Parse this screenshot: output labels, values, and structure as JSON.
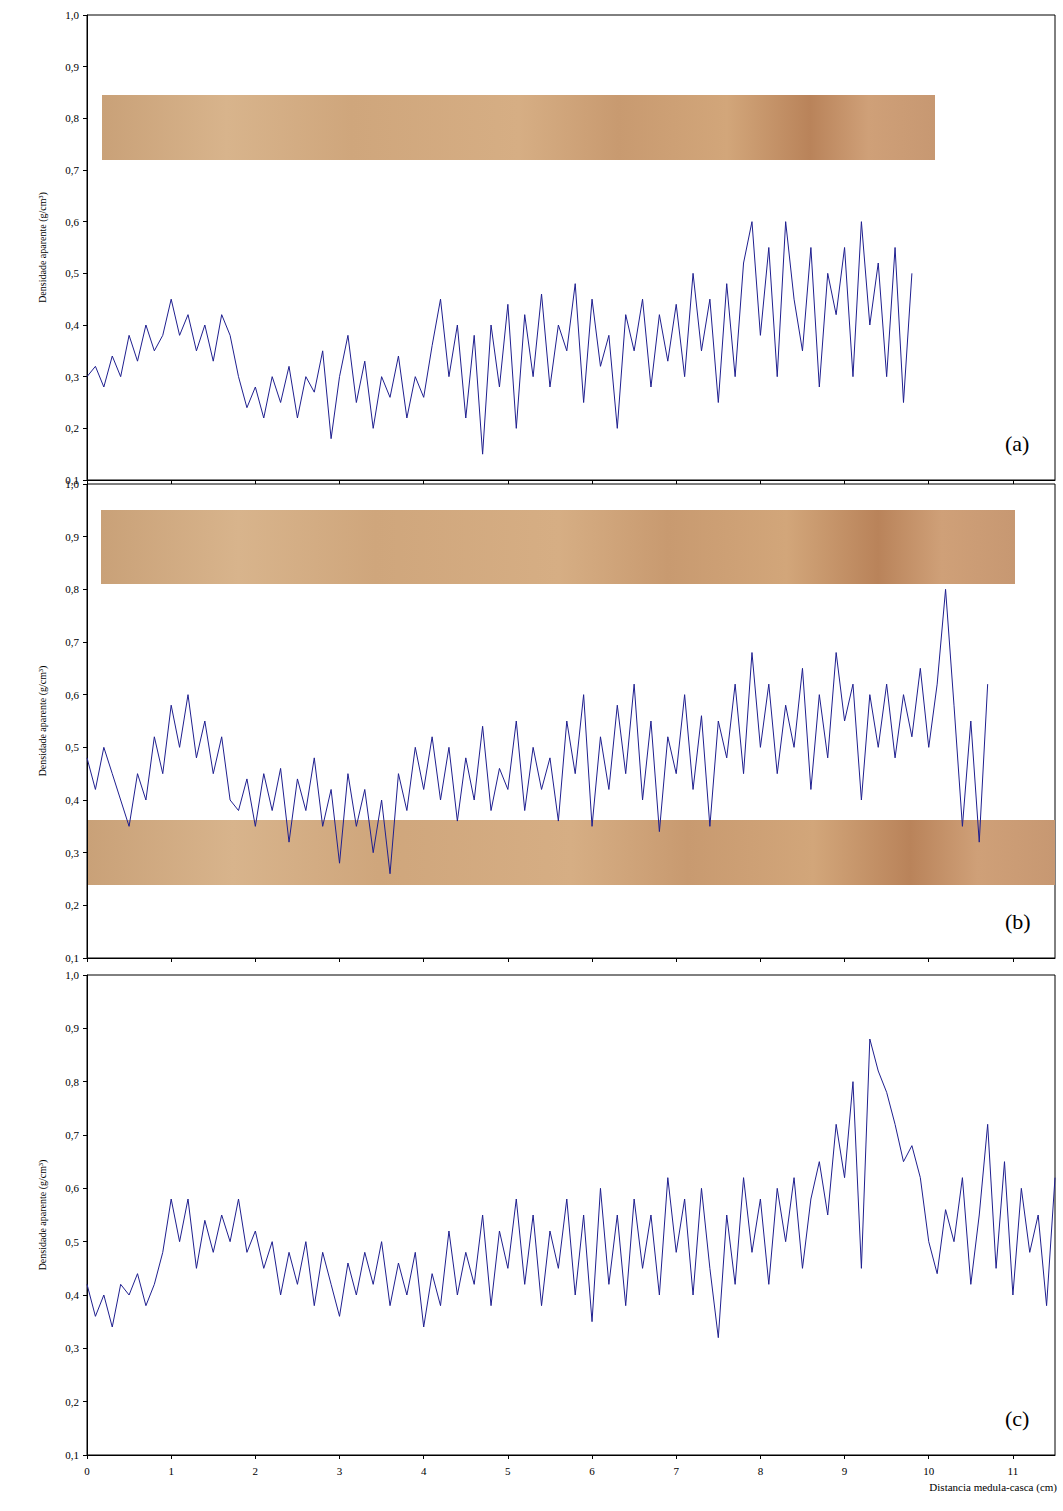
{
  "chart_data": [
    {
      "type": "line",
      "annotation": "(a)",
      "y_label": "Densidade aparente (g/cm³)",
      "color": "#1f1f8f",
      "grid": false,
      "tick_labels": "y",
      "xlim": [
        0,
        11.5
      ],
      "xticks": [
        0,
        1,
        2,
        3,
        4,
        5,
        6,
        7,
        8,
        9,
        10,
        11
      ],
      "ylim": [
        0.1,
        1.0
      ],
      "yticks": [
        {
          "value": 0.1,
          "label": "0,1"
        },
        {
          "value": 0.2,
          "label": "0,2"
        },
        {
          "value": 0.3,
          "label": "0,3"
        },
        {
          "value": 0.4,
          "label": "0,4"
        },
        {
          "value": 0.5,
          "label": "0,5"
        },
        {
          "value": 0.6,
          "label": "0,6"
        },
        {
          "value": 0.7,
          "label": "0,7"
        },
        {
          "value": 0.8,
          "label": "0,8"
        },
        {
          "value": 0.9,
          "label": "0,9"
        },
        {
          "value": 1.0,
          "label": "1,0"
        }
      ],
      "x": [
        0,
        0.1,
        0.2,
        0.3,
        0.4,
        0.5,
        0.6,
        0.7,
        0.8,
        0.9,
        1,
        1.1,
        1.2,
        1.3,
        1.4,
        1.5,
        1.6,
        1.7,
        1.8,
        1.9,
        2,
        2.1,
        2.2,
        2.3,
        2.4,
        2.5,
        2.6,
        2.7,
        2.8,
        2.9,
        3,
        3.1,
        3.2,
        3.3,
        3.4,
        3.5,
        3.6,
        3.7,
        3.8,
        3.9,
        4,
        4.1,
        4.2,
        4.3,
        4.4,
        4.5,
        4.6,
        4.7,
        4.8,
        4.9,
        5,
        5.1,
        5.2,
        5.3,
        5.4,
        5.5,
        5.6,
        5.7,
        5.8,
        5.9,
        6,
        6.1,
        6.2,
        6.3,
        6.4,
        6.5,
        6.6,
        6.7,
        6.8,
        6.9,
        7,
        7.1,
        7.2,
        7.3,
        7.4,
        7.5,
        7.6,
        7.7,
        7.8,
        7.9,
        8,
        8.1,
        8.2,
        8.3,
        8.4,
        8.5,
        8.6,
        8.7,
        8.8,
        8.9,
        9,
        9.1,
        9.2,
        9.3,
        9.4,
        9.5,
        9.6,
        9.7,
        9.8
      ],
      "values": [
        0.3,
        0.32,
        0.28,
        0.34,
        0.3,
        0.38,
        0.33,
        0.4,
        0.35,
        0.38,
        0.45,
        0.38,
        0.42,
        0.35,
        0.4,
        0.33,
        0.42,
        0.38,
        0.3,
        0.24,
        0.28,
        0.22,
        0.3,
        0.25,
        0.32,
        0.22,
        0.3,
        0.27,
        0.35,
        0.18,
        0.3,
        0.38,
        0.25,
        0.33,
        0.2,
        0.3,
        0.26,
        0.34,
        0.22,
        0.3,
        0.26,
        0.36,
        0.45,
        0.3,
        0.4,
        0.22,
        0.38,
        0.15,
        0.4,
        0.28,
        0.44,
        0.2,
        0.42,
        0.3,
        0.46,
        0.28,
        0.4,
        0.35,
        0.48,
        0.25,
        0.45,
        0.32,
        0.38,
        0.2,
        0.42,
        0.35,
        0.45,
        0.28,
        0.42,
        0.33,
        0.44,
        0.3,
        0.5,
        0.35,
        0.45,
        0.25,
        0.48,
        0.3,
        0.52,
        0.6,
        0.38,
        0.55,
        0.3,
        0.6,
        0.45,
        0.35,
        0.55,
        0.28,
        0.5,
        0.42,
        0.55,
        0.3,
        0.6,
        0.4,
        0.52,
        0.3,
        0.55,
        0.25,
        0.5
      ]
    },
    {
      "type": "line",
      "annotation": "(b)",
      "y_label": "Densidade aparente (g/cm³)",
      "color": "#1f1f8f",
      "grid": false,
      "tick_labels": "y",
      "xlim": [
        0,
        11.5
      ],
      "xticks": [
        0,
        1,
        2,
        3,
        4,
        5,
        6,
        7,
        8,
        9,
        10,
        11
      ],
      "ylim": [
        0.1,
        1.0
      ],
      "yticks": [
        {
          "value": 0.1,
          "label": "0,1"
        },
        {
          "value": 0.2,
          "label": "0,2"
        },
        {
          "value": 0.3,
          "label": "0,3"
        },
        {
          "value": 0.4,
          "label": "0,4"
        },
        {
          "value": 0.5,
          "label": "0,5"
        },
        {
          "value": 0.6,
          "label": "0,6"
        },
        {
          "value": 0.7,
          "label": "0,7"
        },
        {
          "value": 0.8,
          "label": "0,8"
        },
        {
          "value": 0.9,
          "label": "0,9"
        },
        {
          "value": 1.0,
          "label": "1,0"
        }
      ],
      "x": [
        0,
        0.1,
        0.2,
        0.3,
        0.4,
        0.5,
        0.6,
        0.7,
        0.8,
        0.9,
        1,
        1.1,
        1.2,
        1.3,
        1.4,
        1.5,
        1.6,
        1.7,
        1.8,
        1.9,
        2,
        2.1,
        2.2,
        2.3,
        2.4,
        2.5,
        2.6,
        2.7,
        2.8,
        2.9,
        3,
        3.1,
        3.2,
        3.3,
        3.4,
        3.5,
        3.6,
        3.7,
        3.8,
        3.9,
        4,
        4.1,
        4.2,
        4.3,
        4.4,
        4.5,
        4.6,
        4.7,
        4.8,
        4.9,
        5,
        5.1,
        5.2,
        5.3,
        5.4,
        5.5,
        5.6,
        5.7,
        5.8,
        5.9,
        6,
        6.1,
        6.2,
        6.3,
        6.4,
        6.5,
        6.6,
        6.7,
        6.8,
        6.9,
        7,
        7.1,
        7.2,
        7.3,
        7.4,
        7.5,
        7.6,
        7.7,
        7.8,
        7.9,
        8,
        8.1,
        8.2,
        8.3,
        8.4,
        8.5,
        8.6,
        8.7,
        8.8,
        8.9,
        9,
        9.1,
        9.2,
        9.3,
        9.4,
        9.5,
        9.6,
        9.7,
        9.8,
        9.9,
        10,
        10.1,
        10.2,
        10.3,
        10.4,
        10.5,
        10.6,
        10.7
      ],
      "values": [
        0.48,
        0.42,
        0.5,
        0.45,
        0.4,
        0.35,
        0.45,
        0.4,
        0.52,
        0.45,
        0.58,
        0.5,
        0.6,
        0.48,
        0.55,
        0.45,
        0.52,
        0.4,
        0.38,
        0.44,
        0.35,
        0.45,
        0.38,
        0.46,
        0.32,
        0.44,
        0.38,
        0.48,
        0.35,
        0.42,
        0.28,
        0.45,
        0.35,
        0.42,
        0.3,
        0.4,
        0.26,
        0.45,
        0.38,
        0.5,
        0.42,
        0.52,
        0.4,
        0.5,
        0.36,
        0.48,
        0.4,
        0.54,
        0.38,
        0.46,
        0.42,
        0.55,
        0.38,
        0.5,
        0.42,
        0.48,
        0.36,
        0.55,
        0.45,
        0.6,
        0.35,
        0.52,
        0.42,
        0.58,
        0.45,
        0.62,
        0.4,
        0.55,
        0.34,
        0.52,
        0.45,
        0.6,
        0.42,
        0.56,
        0.35,
        0.55,
        0.48,
        0.62,
        0.45,
        0.68,
        0.5,
        0.62,
        0.45,
        0.58,
        0.5,
        0.65,
        0.42,
        0.6,
        0.48,
        0.68,
        0.55,
        0.62,
        0.4,
        0.6,
        0.5,
        0.62,
        0.48,
        0.6,
        0.52,
        0.65,
        0.5,
        0.62,
        0.8,
        0.58,
        0.35,
        0.55,
        0.32,
        0.62
      ]
    },
    {
      "type": "line",
      "annotation": "(c)",
      "y_label": "Densidade aparente (g/cm³)",
      "x_label": "Distancia medula-casca (cm)",
      "color": "#1f1f8f",
      "grid": false,
      "xlim": [
        0,
        11.5
      ],
      "xticks": [
        0,
        1,
        2,
        3,
        4,
        5,
        6,
        7,
        8,
        9,
        10,
        11
      ],
      "ylim": [
        0.1,
        1.0
      ],
      "yticks": [
        {
          "value": 0.1,
          "label": "0,1"
        },
        {
          "value": 0.2,
          "label": "0,2"
        },
        {
          "value": 0.3,
          "label": "0,3"
        },
        {
          "value": 0.4,
          "label": "0,4"
        },
        {
          "value": 0.5,
          "label": "0,5"
        },
        {
          "value": 0.6,
          "label": "0,6"
        },
        {
          "value": 0.7,
          "label": "0,7"
        },
        {
          "value": 0.8,
          "label": "0,8"
        },
        {
          "value": 0.9,
          "label": "0,9"
        },
        {
          "value": 1.0,
          "label": "1,0"
        }
      ],
      "x": [
        0,
        0.1,
        0.2,
        0.3,
        0.4,
        0.5,
        0.6,
        0.7,
        0.8,
        0.9,
        1,
        1.1,
        1.2,
        1.3,
        1.4,
        1.5,
        1.6,
        1.7,
        1.8,
        1.9,
        2,
        2.1,
        2.2,
        2.3,
        2.4,
        2.5,
        2.6,
        2.7,
        2.8,
        2.9,
        3,
        3.1,
        3.2,
        3.3,
        3.4,
        3.5,
        3.6,
        3.7,
        3.8,
        3.9,
        4,
        4.1,
        4.2,
        4.3,
        4.4,
        4.5,
        4.6,
        4.7,
        4.8,
        4.9,
        5,
        5.1,
        5.2,
        5.3,
        5.4,
        5.5,
        5.6,
        5.7,
        5.8,
        5.9,
        6,
        6.1,
        6.2,
        6.3,
        6.4,
        6.5,
        6.6,
        6.7,
        6.8,
        6.9,
        7,
        7.1,
        7.2,
        7.3,
        7.4,
        7.5,
        7.6,
        7.7,
        7.8,
        7.9,
        8,
        8.1,
        8.2,
        8.3,
        8.4,
        8.5,
        8.6,
        8.7,
        8.8,
        8.9,
        9,
        9.1,
        9.2,
        9.3,
        9.4,
        9.5,
        9.6,
        9.7,
        9.8,
        9.9,
        10,
        10.1,
        10.2,
        10.3,
        10.4,
        10.5,
        10.6,
        10.7,
        10.8,
        10.9,
        11,
        11.1,
        11.2,
        11.3,
        11.4,
        11.5
      ],
      "values": [
        0.42,
        0.36,
        0.4,
        0.34,
        0.42,
        0.4,
        0.44,
        0.38,
        0.42,
        0.48,
        0.58,
        0.5,
        0.58,
        0.45,
        0.54,
        0.48,
        0.55,
        0.5,
        0.58,
        0.48,
        0.52,
        0.45,
        0.5,
        0.4,
        0.48,
        0.42,
        0.5,
        0.38,
        0.48,
        0.42,
        0.36,
        0.46,
        0.4,
        0.48,
        0.42,
        0.5,
        0.38,
        0.46,
        0.4,
        0.48,
        0.34,
        0.44,
        0.38,
        0.52,
        0.4,
        0.48,
        0.42,
        0.55,
        0.38,
        0.52,
        0.45,
        0.58,
        0.42,
        0.55,
        0.38,
        0.52,
        0.45,
        0.58,
        0.4,
        0.55,
        0.35,
        0.6,
        0.42,
        0.55,
        0.38,
        0.58,
        0.45,
        0.55,
        0.4,
        0.62,
        0.48,
        0.58,
        0.4,
        0.6,
        0.45,
        0.32,
        0.55,
        0.42,
        0.62,
        0.48,
        0.58,
        0.42,
        0.6,
        0.5,
        0.62,
        0.45,
        0.58,
        0.65,
        0.55,
        0.72,
        0.62,
        0.8,
        0.45,
        0.88,
        0.82,
        0.78,
        0.72,
        0.65,
        0.68,
        0.62,
        0.5,
        0.44,
        0.56,
        0.5,
        0.62,
        0.42,
        0.55,
        0.72,
        0.45,
        0.65,
        0.4,
        0.6,
        0.48,
        0.55,
        0.38,
        0.62
      ]
    }
  ]
}
